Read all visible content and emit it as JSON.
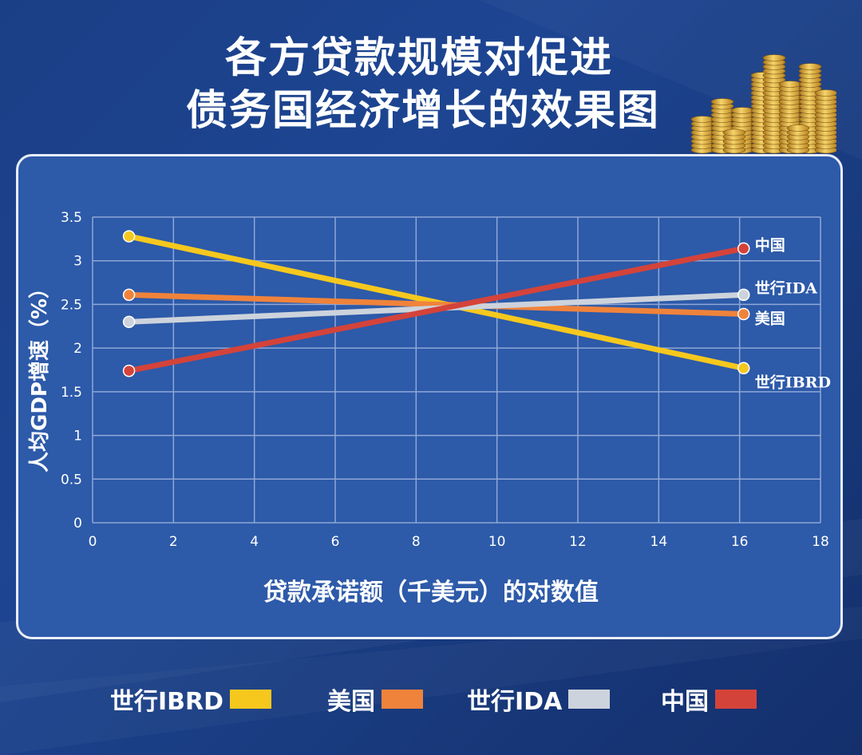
{
  "title": {
    "line1": "各方贷款规模对促进",
    "line2": "债务国经济增长的效果图"
  },
  "chart_data": {
    "type": "line",
    "xlabel": "贷款承诺额（千美元）的对数值",
    "ylabel": "人均GDP增速（%）",
    "xlim": [
      0,
      18
    ],
    "ylim": [
      0,
      3.5
    ],
    "x_ticks": [
      "0",
      "2",
      "4",
      "6",
      "8",
      "10",
      "12",
      "14",
      "16",
      "18"
    ],
    "y_ticks": [
      "0",
      "0.5",
      "1",
      "1.5",
      "2",
      "2.5",
      "3",
      "3.5"
    ],
    "grid": true,
    "legend_position": "bottom",
    "series": [
      {
        "name": "世行IBRD",
        "color": "#f6c81e",
        "x": [
          0.9,
          16.1
        ],
        "y": [
          3.28,
          1.77
        ],
        "end_label": "世行IBRD"
      },
      {
        "name": "美国",
        "color": "#f0833b",
        "x": [
          0.9,
          16.1
        ],
        "y": [
          2.61,
          2.39
        ],
        "end_label": "美国"
      },
      {
        "name": "世行IDA",
        "color": "#cdd3dc",
        "x": [
          0.9,
          16.1
        ],
        "y": [
          2.3,
          2.61
        ],
        "end_label": "世行IDA"
      },
      {
        "name": "中国",
        "color": "#d4433a",
        "x": [
          0.9,
          16.1
        ],
        "y": [
          1.74,
          3.14
        ],
        "end_label": "中国"
      }
    ]
  }
}
